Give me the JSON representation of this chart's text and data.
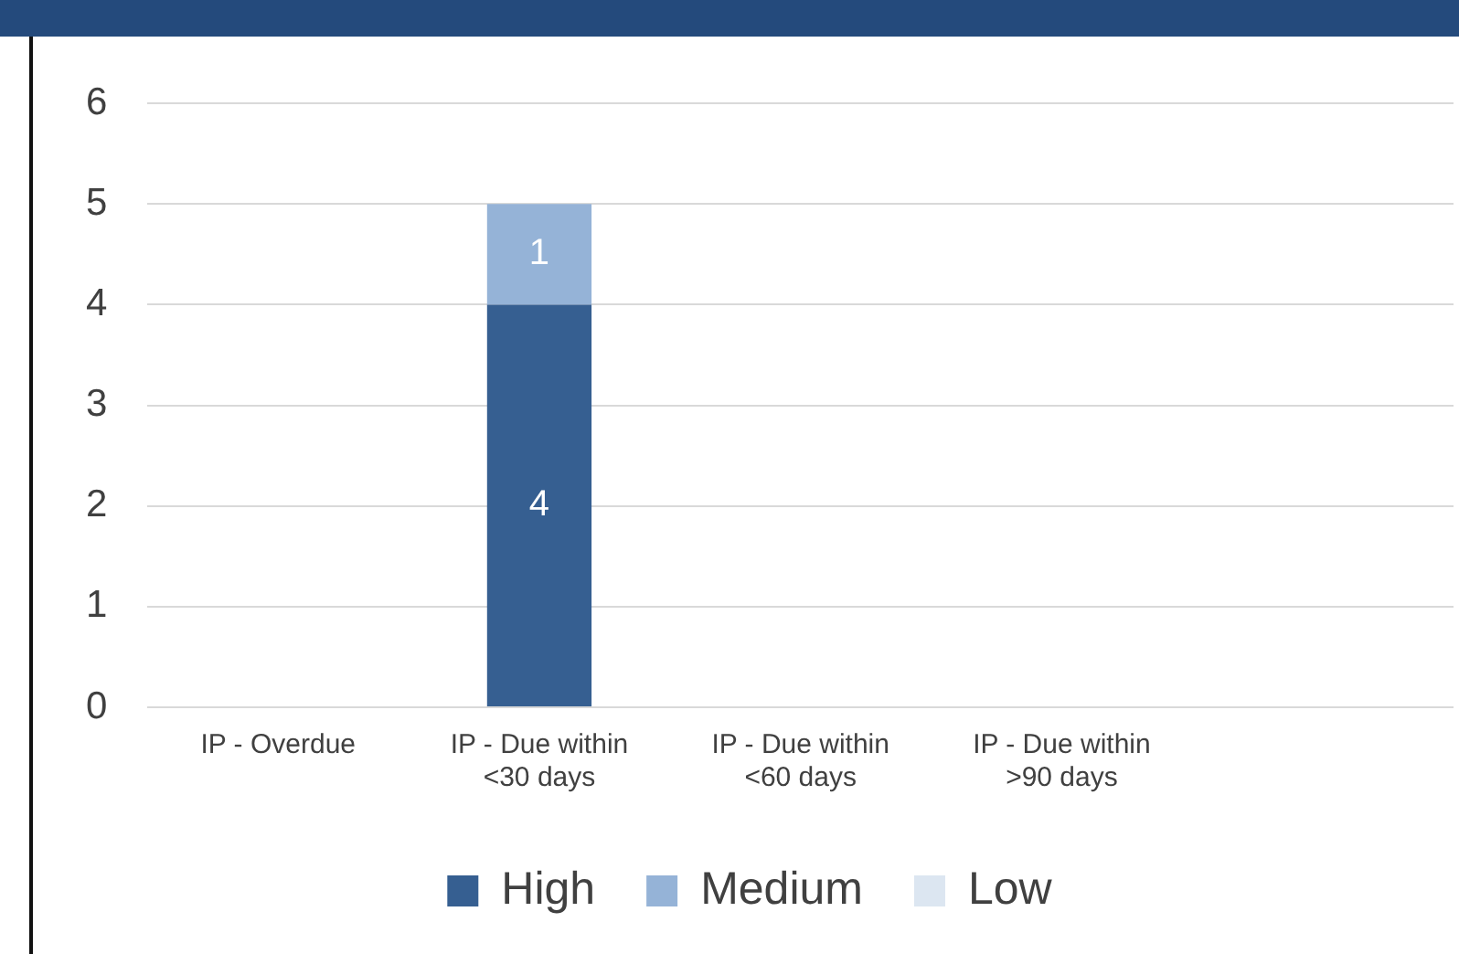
{
  "chart_data": {
    "type": "bar",
    "stacked": true,
    "categories": [
      "IP - Overdue",
      "IP - Due within <30 days",
      "IP - Due within <60 days",
      "IP - Due within >90 days",
      null
    ],
    "series": [
      {
        "name": "High",
        "color": "#365f91",
        "values": [
          null,
          4,
          null,
          null,
          null
        ]
      },
      {
        "name": "Medium",
        "color": "#95b3d7",
        "values": [
          null,
          1,
          null,
          null,
          null
        ]
      },
      {
        "name": "Low",
        "color": "#dce6f1",
        "values": [
          null,
          null,
          null,
          null,
          null
        ]
      }
    ],
    "ylim": [
      0,
      6
    ],
    "yticks": [
      0,
      1,
      2,
      3,
      4,
      5,
      6
    ],
    "grid": "y",
    "legend": "bottom",
    "data_labels": true
  }
}
